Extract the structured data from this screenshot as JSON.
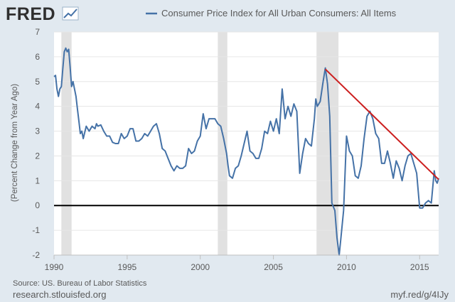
{
  "brand": {
    "logo": "FRED",
    "logo_icon": "fred-chart-logo-icon"
  },
  "legend": {
    "label": "Consumer Price Index for All Urban Consumers: All Items",
    "color": "#4572a7"
  },
  "footer": {
    "source": "Source: US. Bureau of Labor Statistics",
    "site": "research.stlouisfed.org",
    "short_url": "myf.red/g/4IJy"
  },
  "colors": {
    "background": "#e1e9f0",
    "plot_background": "#ffffff",
    "series": "#4572a7",
    "recession": "#e1e1e1",
    "trend_line": "#cc1f1f",
    "zero_line": "#000000"
  },
  "chart_data": {
    "type": "line",
    "title": "",
    "xlabel": "",
    "ylabel": "(Percent Change from Year Ago)",
    "xlim": [
      1990.0,
      2016.3
    ],
    "ylim": [
      -2,
      7
    ],
    "x_ticks": [
      1990,
      1995,
      2000,
      2005,
      2010,
      2015
    ],
    "x_tick_labels": [
      "1990",
      "1995",
      "2000",
      "2005",
      "2010",
      "2015"
    ],
    "y_ticks": [
      -2,
      -1,
      0,
      1,
      2,
      3,
      4,
      5,
      6,
      7
    ],
    "y_tick_labels": [
      "-2",
      "-1",
      "0",
      "1",
      "2",
      "3",
      "4",
      "5",
      "6",
      "7"
    ],
    "grid": "horizontal",
    "legend_position": "top",
    "recessions": [
      [
        1990.5,
        1991.2
      ],
      [
        2001.2,
        2001.85
      ],
      [
        2007.95,
        2009.45
      ]
    ],
    "series": [
      {
        "name": "Consumer Price Index for All Urban Consumers: All Items",
        "color": "#4572a7",
        "points": [
          [
            1990.0,
            5.2
          ],
          [
            1990.1,
            5.25
          ],
          [
            1990.2,
            4.7
          ],
          [
            1990.3,
            4.4
          ],
          [
            1990.4,
            4.7
          ],
          [
            1990.5,
            4.8
          ],
          [
            1990.6,
            5.5
          ],
          [
            1990.7,
            6.2
          ],
          [
            1990.8,
            6.35
          ],
          [
            1990.9,
            6.2
          ],
          [
            1991.0,
            6.3
          ],
          [
            1991.1,
            5.6
          ],
          [
            1991.2,
            4.8
          ],
          [
            1991.3,
            5.0
          ],
          [
            1991.4,
            4.7
          ],
          [
            1991.5,
            4.4
          ],
          [
            1991.6,
            3.9
          ],
          [
            1991.7,
            3.4
          ],
          [
            1991.8,
            2.9
          ],
          [
            1991.9,
            3.0
          ],
          [
            1992.0,
            2.7
          ],
          [
            1992.2,
            3.2
          ],
          [
            1992.4,
            3.0
          ],
          [
            1992.6,
            3.2
          ],
          [
            1992.8,
            3.1
          ],
          [
            1992.9,
            3.3
          ],
          [
            1993.0,
            3.2
          ],
          [
            1993.2,
            3.25
          ],
          [
            1993.4,
            3.0
          ],
          [
            1993.6,
            2.8
          ],
          [
            1993.8,
            2.8
          ],
          [
            1994.0,
            2.55
          ],
          [
            1994.2,
            2.5
          ],
          [
            1994.4,
            2.5
          ],
          [
            1994.6,
            2.9
          ],
          [
            1994.8,
            2.7
          ],
          [
            1995.0,
            2.8
          ],
          [
            1995.2,
            3.1
          ],
          [
            1995.4,
            3.1
          ],
          [
            1995.6,
            2.6
          ],
          [
            1995.8,
            2.6
          ],
          [
            1996.0,
            2.7
          ],
          [
            1996.2,
            2.9
          ],
          [
            1996.4,
            2.8
          ],
          [
            1996.6,
            3.0
          ],
          [
            1996.8,
            3.2
          ],
          [
            1997.0,
            3.3
          ],
          [
            1997.2,
            2.9
          ],
          [
            1997.4,
            2.3
          ],
          [
            1997.6,
            2.2
          ],
          [
            1997.8,
            1.9
          ],
          [
            1998.0,
            1.6
          ],
          [
            1998.2,
            1.4
          ],
          [
            1998.4,
            1.6
          ],
          [
            1998.6,
            1.5
          ],
          [
            1998.8,
            1.5
          ],
          [
            1999.0,
            1.6
          ],
          [
            1999.2,
            2.3
          ],
          [
            1999.4,
            2.1
          ],
          [
            1999.6,
            2.2
          ],
          [
            1999.8,
            2.6
          ],
          [
            2000.0,
            2.8
          ],
          [
            2000.2,
            3.7
          ],
          [
            2000.4,
            3.1
          ],
          [
            2000.6,
            3.5
          ],
          [
            2000.8,
            3.5
          ],
          [
            2001.0,
            3.5
          ],
          [
            2001.2,
            3.3
          ],
          [
            2001.4,
            3.2
          ],
          [
            2001.6,
            2.7
          ],
          [
            2001.8,
            2.1
          ],
          [
            2001.9,
            1.6
          ],
          [
            2002.0,
            1.2
          ],
          [
            2002.2,
            1.1
          ],
          [
            2002.4,
            1.5
          ],
          [
            2002.6,
            1.6
          ],
          [
            2002.8,
            2.0
          ],
          [
            2003.0,
            2.5
          ],
          [
            2003.2,
            3.0
          ],
          [
            2003.4,
            2.2
          ],
          [
            2003.6,
            2.1
          ],
          [
            2003.8,
            1.9
          ],
          [
            2004.0,
            1.9
          ],
          [
            2004.2,
            2.3
          ],
          [
            2004.4,
            3.0
          ],
          [
            2004.6,
            2.9
          ],
          [
            2004.8,
            3.4
          ],
          [
            2005.0,
            3.0
          ],
          [
            2005.2,
            3.5
          ],
          [
            2005.4,
            2.9
          ],
          [
            2005.6,
            4.7
          ],
          [
            2005.8,
            3.5
          ],
          [
            2006.0,
            4.0
          ],
          [
            2006.2,
            3.6
          ],
          [
            2006.4,
            4.1
          ],
          [
            2006.6,
            3.8
          ],
          [
            2006.8,
            1.3
          ],
          [
            2007.0,
            2.1
          ],
          [
            2007.2,
            2.7
          ],
          [
            2007.4,
            2.5
          ],
          [
            2007.6,
            2.4
          ],
          [
            2007.8,
            3.5
          ],
          [
            2007.9,
            4.3
          ],
          [
            2008.0,
            4.0
          ],
          [
            2008.2,
            4.2
          ],
          [
            2008.4,
            5.0
          ],
          [
            2008.55,
            5.55
          ],
          [
            2008.7,
            4.9
          ],
          [
            2008.85,
            3.6
          ],
          [
            2009.0,
            0.1
          ],
          [
            2009.2,
            -0.2
          ],
          [
            2009.35,
            -1.3
          ],
          [
            2009.5,
            -2.0
          ],
          [
            2009.6,
            -1.4
          ],
          [
            2009.8,
            -0.2
          ],
          [
            2010.0,
            2.8
          ],
          [
            2010.2,
            2.2
          ],
          [
            2010.4,
            2.0
          ],
          [
            2010.6,
            1.2
          ],
          [
            2010.8,
            1.1
          ],
          [
            2011.0,
            1.6
          ],
          [
            2011.2,
            2.7
          ],
          [
            2011.4,
            3.6
          ],
          [
            2011.6,
            3.8
          ],
          [
            2011.8,
            3.5
          ],
          [
            2012.0,
            2.9
          ],
          [
            2012.2,
            2.7
          ],
          [
            2012.4,
            1.7
          ],
          [
            2012.6,
            1.7
          ],
          [
            2012.8,
            2.2
          ],
          [
            2013.0,
            1.7
          ],
          [
            2013.2,
            1.1
          ],
          [
            2013.4,
            1.8
          ],
          [
            2013.6,
            1.5
          ],
          [
            2013.8,
            1.0
          ],
          [
            2014.0,
            1.6
          ],
          [
            2014.2,
            2.0
          ],
          [
            2014.4,
            2.1
          ],
          [
            2014.6,
            1.7
          ],
          [
            2014.8,
            1.3
          ],
          [
            2015.0,
            -0.1
          ],
          [
            2015.2,
            -0.1
          ],
          [
            2015.4,
            0.1
          ],
          [
            2015.6,
            0.2
          ],
          [
            2015.8,
            0.1
          ],
          [
            2016.0,
            1.4
          ],
          [
            2016.1,
            1.0
          ],
          [
            2016.2,
            0.9
          ],
          [
            2016.3,
            1.1
          ]
        ]
      }
    ],
    "annotations": [
      {
        "type": "trend_line",
        "color": "#cc1f1f",
        "from": [
          2008.55,
          5.5
        ],
        "to": [
          2016.3,
          1.05
        ]
      }
    ]
  }
}
